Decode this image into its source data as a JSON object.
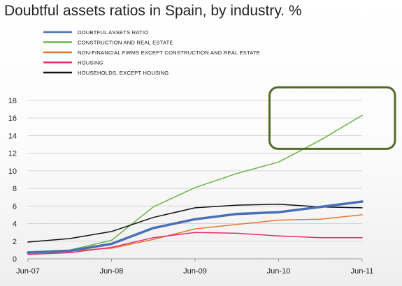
{
  "chart_data": {
    "type": "line",
    "title": "Doubtful assets ratios in Spain, by industry. %",
    "xlabel": "",
    "ylabel": "",
    "x": [
      "Jun-07",
      "Dec-07",
      "Jun-08",
      "Dec-08",
      "Jun-09",
      "Dec-09",
      "Jun-10",
      "Dec-10",
      "Jun-11"
    ],
    "x_tick_labels": [
      "Jun-07",
      "Jun-08",
      "Jun-09",
      "Jun-10",
      "Jun-11"
    ],
    "x_tick_indices": [
      0,
      2,
      4,
      6,
      8
    ],
    "ylim": [
      0,
      18
    ],
    "y_ticks": [
      0,
      2,
      4,
      6,
      8,
      10,
      12,
      14,
      16,
      18
    ],
    "grid": "horizontal",
    "legend_position": "top-left",
    "series": [
      {
        "name": "DOUBTFUL  ASSETS RATIO",
        "color": "#4a6fb5",
        "width": 3.5,
        "values": [
          0.7,
          0.9,
          1.7,
          3.5,
          4.5,
          5.1,
          5.3,
          5.9,
          6.5
        ]
      },
      {
        "name": "CONSTRUCTION  AND  REAL ESTATE",
        "color": "#6cb446",
        "width": 1.5,
        "values": [
          0.8,
          1.0,
          2.1,
          5.9,
          8.1,
          9.7,
          11.0,
          13.5,
          16.3
        ]
      },
      {
        "name": "NON-FINANCIAL  FIRMS  EXCEPT CONSTRUCTION  AND REAL ESTATE",
        "color": "#e8772e",
        "width": 1.5,
        "values": [
          0.8,
          0.9,
          1.2,
          2.2,
          3.4,
          3.9,
          4.4,
          4.5,
          5.0
        ]
      },
      {
        "name": "HOUSING",
        "color": "#e42d6e",
        "width": 1.5,
        "values": [
          0.5,
          0.7,
          1.3,
          2.4,
          3.0,
          2.9,
          2.6,
          2.4,
          2.4
        ]
      },
      {
        "name": "HOUSEHOLDS,  EXCEPT HOUSING",
        "color": "#111111",
        "width": 1.5,
        "values": [
          1.9,
          2.3,
          3.1,
          4.7,
          5.8,
          6.1,
          6.2,
          5.9,
          5.8
        ]
      }
    ],
    "annotations": [
      {
        "type": "rounded-rectangle-highlight",
        "color": "#536b2a",
        "x_from": "Jun-10",
        "x_to": "Jun-11",
        "y_from": 12.5,
        "y_to": 19.5
      }
    ]
  }
}
